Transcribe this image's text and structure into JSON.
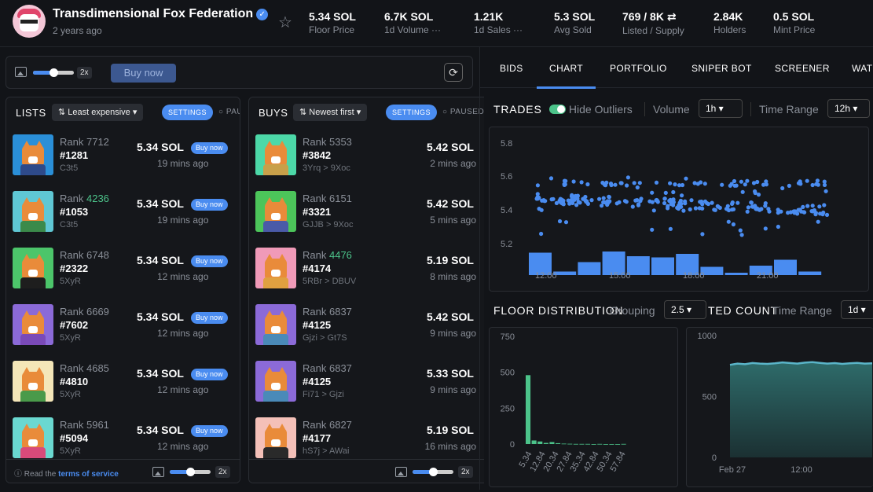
{
  "collection": {
    "name": "Transdimensional Fox Federation",
    "age": "2 years ago"
  },
  "stats": [
    {
      "value": "5.34 SOL",
      "label": "Floor Price"
    },
    {
      "value": "6.7K SOL",
      "label": "1d Volume ···"
    },
    {
      "value": "1.21K",
      "label": "1d Sales ···"
    },
    {
      "value": "5.3 SOL",
      "label": "Avg Sold"
    },
    {
      "value": "769 / 8K ⇄",
      "label": "Listed / Supply"
    },
    {
      "value": "2.84K",
      "label": "Holders"
    },
    {
      "value": "0.5 SOL",
      "label": "Mint Price"
    }
  ],
  "toolbar": {
    "zoom": "2x",
    "buy_now": "Buy now"
  },
  "lists": {
    "title": "LISTS",
    "sort": "⇅ Least expensive ▾",
    "settings": "SETTINGS",
    "paused": "○ PAU",
    "items": [
      {
        "rank_label": "Rank",
        "rank": "7712",
        "rank_color": "n",
        "number": "#1281",
        "owner": "C3t5",
        "price": "5.34 SOL",
        "buy": "Buy now",
        "time": "19 mins ago",
        "bg": "#2a8fd8",
        "body": "#2e4a8a"
      },
      {
        "rank_label": "Rank",
        "rank": "4236",
        "rank_color": "g",
        "number": "#1053",
        "owner": "C3t5",
        "price": "5.34 SOL",
        "buy": "Buy now",
        "time": "19 mins ago",
        "bg": "#5fc7d4",
        "body": "#3b8a4a"
      },
      {
        "rank_label": "Rank",
        "rank": "6748",
        "rank_color": "n",
        "number": "#2322",
        "owner": "5XyR",
        "price": "5.34 SOL",
        "buy": "Buy now",
        "time": "12 mins ago",
        "bg": "#4cc56a",
        "body": "#1e1e1e"
      },
      {
        "rank_label": "Rank",
        "rank": "6669",
        "rank_color": "n",
        "number": "#7602",
        "owner": "5XyR",
        "price": "5.34 SOL",
        "buy": "Buy now",
        "time": "12 mins ago",
        "bg": "#8b6ad8",
        "body": "#7a4ab8"
      },
      {
        "rank_label": "Rank",
        "rank": "4685",
        "rank_color": "n",
        "number": "#4810",
        "owner": "5XyR",
        "price": "5.34 SOL",
        "buy": "Buy now",
        "time": "12 mins ago",
        "bg": "#f4e6b8",
        "body": "#4a9a4a"
      },
      {
        "rank_label": "Rank",
        "rank": "5961",
        "rank_color": "n",
        "number": "#5094",
        "owner": "5XyR",
        "price": "5.34 SOL",
        "buy": "Buy now",
        "time": "12 mins ago",
        "bg": "#6ad8d0",
        "body": "#d84a7a"
      }
    ],
    "footer_prefix": "Read the",
    "footer_link": "terms of service"
  },
  "buys": {
    "title": "BUYS",
    "sort": "⇅ Newest first ▾",
    "settings": "SETTINGS",
    "paused": "○ PAUSED",
    "items": [
      {
        "rank_label": "Rank",
        "rank": "5353",
        "rank_color": "n",
        "number": "#3842",
        "owner": "3Yrq > 9Xoc",
        "price": "5.42 SOL",
        "time": "2 mins ago",
        "bg": "#4cd8a8",
        "body": "#c8a04a"
      },
      {
        "rank_label": "Rank",
        "rank": "6151",
        "rank_color": "n",
        "number": "#3321",
        "owner": "GJJB > 9Xoc",
        "price": "5.42 SOL",
        "time": "5 mins ago",
        "bg": "#4cc55a",
        "body": "#4a5aa8"
      },
      {
        "rank_label": "Rank",
        "rank": "4476",
        "rank_color": "g",
        "number": "#4174",
        "owner": "5RBr > DBUV",
        "price": "5.19 SOL",
        "time": "8 mins ago",
        "bg": "#f09ab8",
        "body": "#e0a040"
      },
      {
        "rank_label": "Rank",
        "rank": "6837",
        "rank_color": "n",
        "number": "#4125",
        "owner": "Gjzi > Gt7S",
        "price": "5.42 SOL",
        "time": "9 mins ago",
        "bg": "#8b6ad8",
        "body": "#4a8ab8"
      },
      {
        "rank_label": "Rank",
        "rank": "6837",
        "rank_color": "n",
        "number": "#4125",
        "owner": "Fi71 > Gjzi",
        "price": "5.33 SOL",
        "time": "9 mins ago",
        "bg": "#8b6ad8",
        "body": "#4a8ab8"
      },
      {
        "rank_label": "Rank",
        "rank": "6827",
        "rank_color": "n",
        "number": "#4177",
        "owner": "hS7j > AWai",
        "price": "5.19 SOL",
        "time": "16 mins ago",
        "bg": "#f4c0b8",
        "body": "#2a2a2a"
      }
    ]
  },
  "tabs": [
    "BIDS",
    "CHART",
    "PORTFOLIO",
    "SNIPER BOT",
    "SCREENER",
    "WATC"
  ],
  "trades": {
    "title": "TRADES",
    "hide_outliers": "Hide Outliers",
    "volume_label": "Volume",
    "volume_value": "1h ▾",
    "range_label": "Time Range",
    "range_value": "12h ▾"
  },
  "floor": {
    "title": "FLOOR DISTRIBUTION",
    "grouping_label": "Grouping",
    "grouping_value": "2.5 ▾",
    "listed_title": "TED COUNT",
    "range_label": "Time Range",
    "range_value": "1d ▾"
  },
  "colors": {
    "accent": "#4a8cf0",
    "green": "#4cc38a",
    "teal": "#5ab4c8"
  },
  "chart_data": [
    {
      "type": "scatter",
      "title": "TRADES",
      "yticks": [
        "5.8",
        "5.6",
        "5.4",
        "5.2"
      ],
      "ylim": [
        5.1,
        5.85
      ],
      "xticks": [
        "12:00",
        "15:00",
        "18:00",
        "21:00"
      ],
      "volume_bars": [
        0.95,
        0.15,
        0.55,
        1.0,
        0.8,
        0.75,
        0.9,
        0.35,
        0.1,
        0.4,
        0.65,
        0.15
      ],
      "scatter_note": "trade prices clustered 5.4–5.6"
    },
    {
      "type": "bar",
      "title": "FLOOR DISTRIBUTION",
      "yticks": [
        "750",
        "500",
        "250",
        "0"
      ],
      "ylim": [
        0,
        750
      ],
      "categories": [
        "5.34",
        "12.84",
        "20.34",
        "27.84",
        "35.34",
        "42.84",
        "50.34",
        "57.84"
      ],
      "values": [
        480,
        25,
        18,
        8,
        2,
        1,
        1,
        1
      ]
    },
    {
      "type": "area",
      "title": "LISTED COUNT",
      "yticks": [
        "1000",
        "500",
        "0"
      ],
      "ylim": [
        0,
        1000
      ],
      "xticks": [
        "Feb 27",
        "12:00"
      ],
      "values": [
        760,
        770,
        765,
        775,
        770,
        768,
        772,
        780,
        775,
        770,
        778,
        782,
        776,
        770,
        774,
        768,
        772,
        776,
        770,
        772
      ]
    }
  ]
}
